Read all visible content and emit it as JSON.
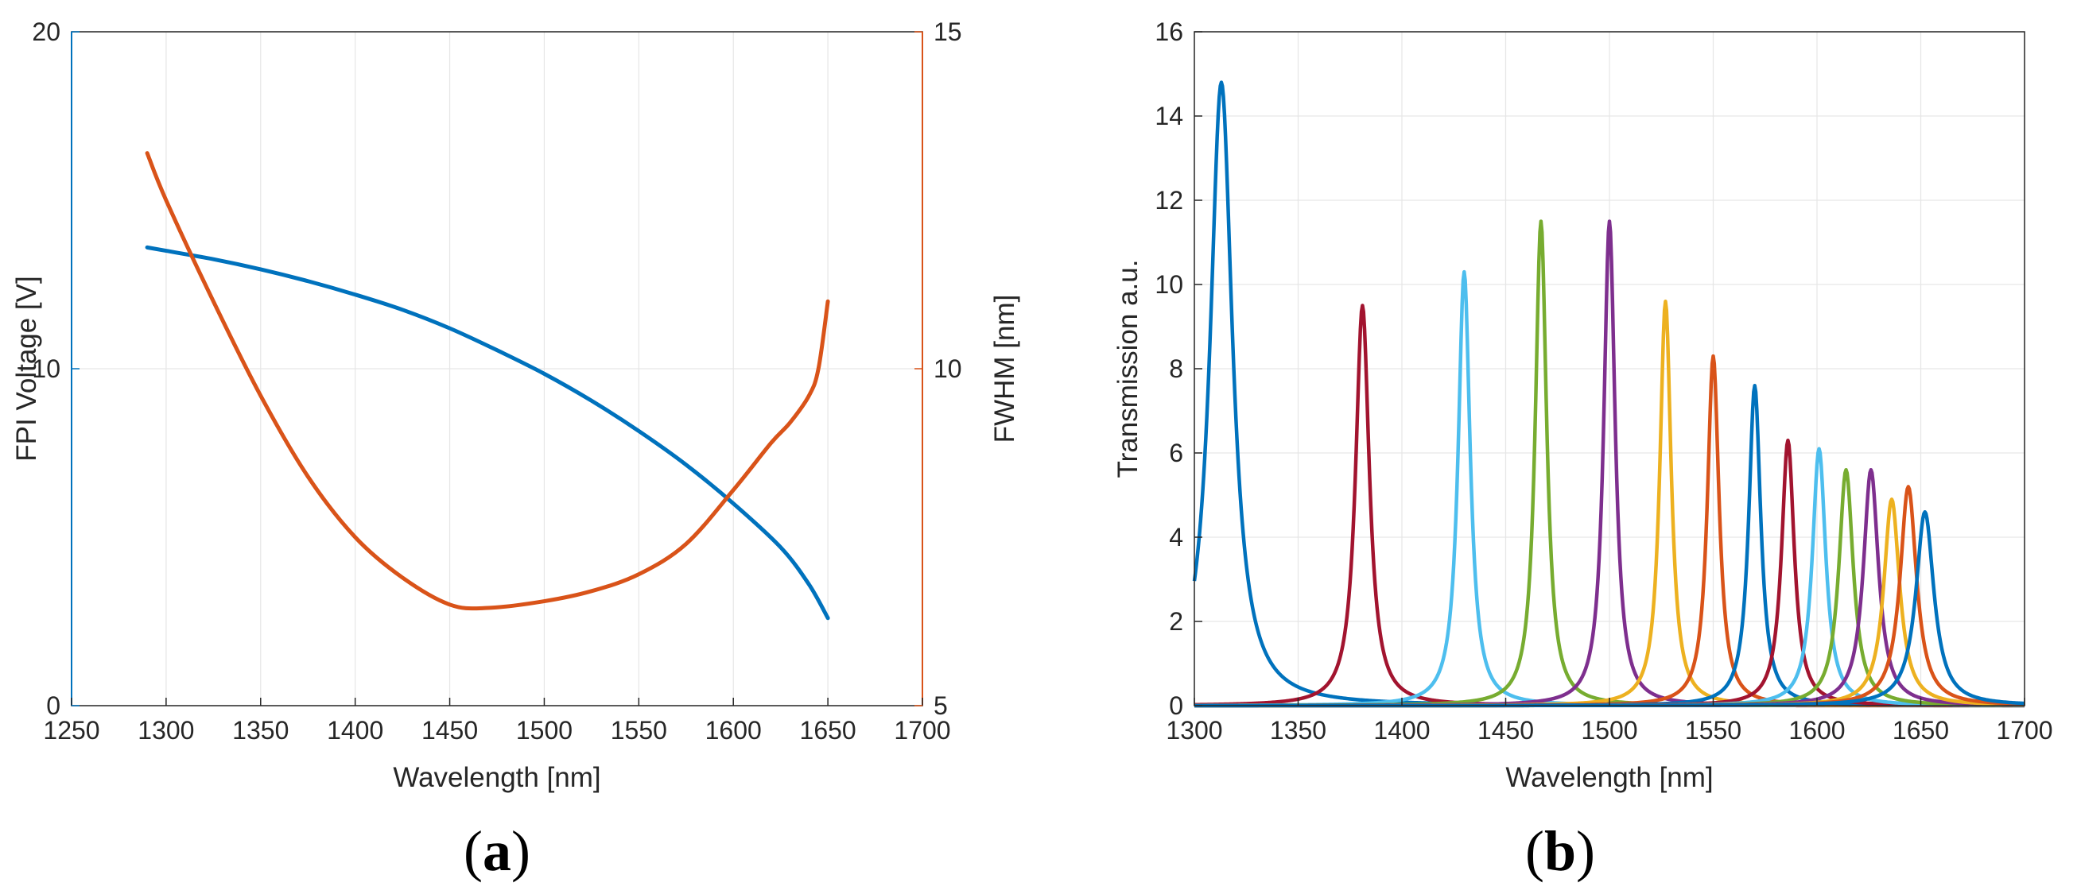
{
  "chart_data": [
    {
      "panel_label_open": "(",
      "panel_label_letter": "a",
      "panel_label_close": ")",
      "type": "line",
      "title": "",
      "xlabel": "Wavelength [nm]",
      "ylabel": "FPI Voltage [V]",
      "ylabel_right": "FWHM [nm]",
      "xlim": [
        1250,
        1700
      ],
      "ylim": [
        0,
        20
      ],
      "ylim_right": [
        5,
        15
      ],
      "xticks": [
        "1250",
        "1300",
        "1350",
        "1400",
        "1450",
        "1500",
        "1550",
        "1600",
        "1650",
        "1700"
      ],
      "yticks": [
        "0",
        "10",
        "20"
      ],
      "yticks_right": [
        "5",
        "10",
        "15"
      ],
      "grid": true,
      "series": [
        {
          "name": "FPI Voltage",
          "axis": "left",
          "color": "#0072BD",
          "x": [
            1290,
            1300,
            1325,
            1350,
            1375,
            1400,
            1425,
            1450,
            1475,
            1500,
            1525,
            1550,
            1575,
            1600,
            1625,
            1640,
            1650
          ],
          "y": [
            13.6,
            13.5,
            13.25,
            12.95,
            12.6,
            12.2,
            11.75,
            11.2,
            10.55,
            9.85,
            9.05,
            8.15,
            7.15,
            6.0,
            4.7,
            3.6,
            2.6
          ]
        },
        {
          "name": "FWHM",
          "axis": "right",
          "color": "#D95319",
          "x": [
            1290,
            1300,
            1325,
            1350,
            1375,
            1400,
            1425,
            1450,
            1470,
            1500,
            1525,
            1550,
            1575,
            1600,
            1620,
            1630,
            1640,
            1645,
            1650
          ],
          "y": [
            13.2,
            12.5,
            11.0,
            9.6,
            8.4,
            7.5,
            6.9,
            6.5,
            6.45,
            6.55,
            6.7,
            6.95,
            7.4,
            8.2,
            8.9,
            9.2,
            9.6,
            10.0,
            11.0
          ]
        }
      ]
    },
    {
      "panel_label_open": "(",
      "panel_label_letter": "b",
      "panel_label_close": ")",
      "type": "line",
      "title": "",
      "xlabel": "Wavelength [nm]",
      "ylabel": "Transmission a.u.",
      "xlim": [
        1300,
        1700
      ],
      "ylim": [
        0,
        16
      ],
      "xticks": [
        "1300",
        "1350",
        "1400",
        "1450",
        "1500",
        "1550",
        "1600",
        "1650",
        "1700"
      ],
      "yticks": [
        "0",
        "2",
        "4",
        "6",
        "8",
        "10",
        "12",
        "14",
        "16"
      ],
      "grid": true,
      "series": [
        {
          "name": "peak 1300",
          "color": "#0072BD",
          "center": 1313,
          "peak": 14.8,
          "fwhm": 13.0
        },
        {
          "name": "peak 1380",
          "color": "#A2142F",
          "center": 1381,
          "peak": 9.5,
          "fwhm": 8.0
        },
        {
          "name": "peak 1430",
          "color": "#4DBEEE",
          "center": 1430,
          "peak": 10.3,
          "fwhm": 7.0
        },
        {
          "name": "peak 1467",
          "color": "#77AC30",
          "center": 1467,
          "peak": 11.5,
          "fwhm": 6.6
        },
        {
          "name": "peak 1500",
          "color": "#7E2F8E",
          "center": 1500,
          "peak": 11.5,
          "fwhm": 6.6
        },
        {
          "name": "peak 1527",
          "color": "#EDB120",
          "center": 1527,
          "peak": 9.6,
          "fwhm": 6.6
        },
        {
          "name": "peak 1550",
          "color": "#D95319",
          "center": 1550,
          "peak": 8.3,
          "fwhm": 6.8
        },
        {
          "name": "peak 1570",
          "color": "#0072BD",
          "center": 1570,
          "peak": 7.6,
          "fwhm": 7.0
        },
        {
          "name": "peak 1586",
          "color": "#A2142F",
          "center": 1586,
          "peak": 6.3,
          "fwhm": 7.4
        },
        {
          "name": "peak 1601",
          "color": "#4DBEEE",
          "center": 1601,
          "peak": 6.1,
          "fwhm": 7.8
        },
        {
          "name": "peak 1614",
          "color": "#77AC30",
          "center": 1614,
          "peak": 5.6,
          "fwhm": 8.4
        },
        {
          "name": "peak 1626",
          "color": "#7E2F8E",
          "center": 1626,
          "peak": 5.6,
          "fwhm": 8.8
        },
        {
          "name": "peak 1636",
          "color": "#EDB120",
          "center": 1636,
          "peak": 4.9,
          "fwhm": 9.2
        },
        {
          "name": "peak 1644",
          "color": "#D95319",
          "center": 1644,
          "peak": 5.2,
          "fwhm": 9.6
        },
        {
          "name": "peak 1652",
          "color": "#0072BD",
          "center": 1652,
          "peak": 4.6,
          "fwhm": 10.5
        }
      ]
    }
  ],
  "colors": {
    "axis": "#262626",
    "grid": "#e6e6e6",
    "left_axis_a": "#0072BD",
    "right_axis_a": "#D95319"
  }
}
